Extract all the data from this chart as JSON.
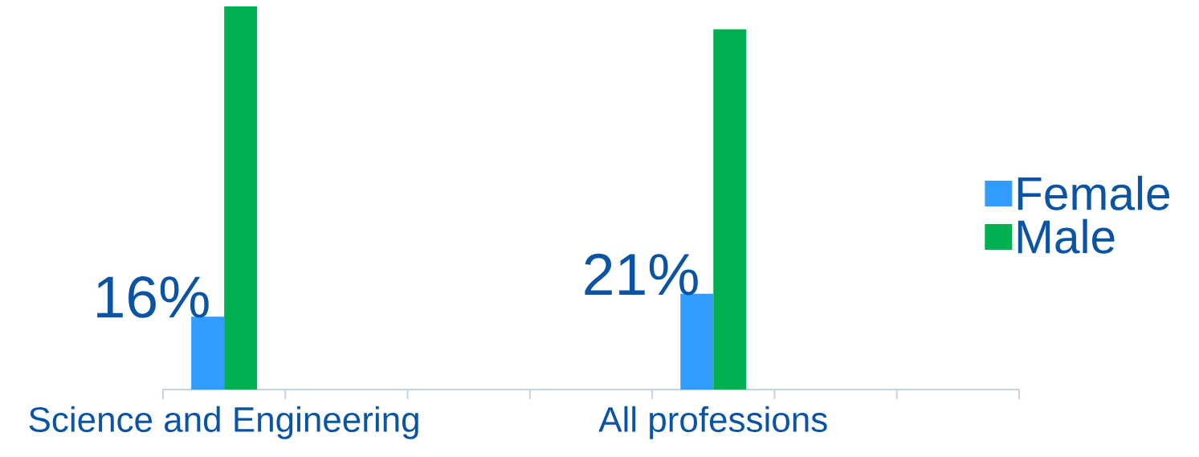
{
  "chart_data": {
    "type": "bar",
    "categories": [
      "Science and Engineering",
      null,
      null,
      null,
      "All professions",
      null,
      null
    ],
    "series": [
      {
        "name": "Female",
        "color": "#339cff",
        "values": [
          16,
          null,
          null,
          null,
          21,
          null,
          null
        ],
        "value_labels": [
          "16%",
          null,
          null,
          null,
          "21%",
          null,
          null
        ]
      },
      {
        "name": "Male",
        "color": "#00b050",
        "values": [
          84,
          null,
          null,
          null,
          79,
          null,
          null
        ]
      }
    ],
    "legend": "right"
  }
}
